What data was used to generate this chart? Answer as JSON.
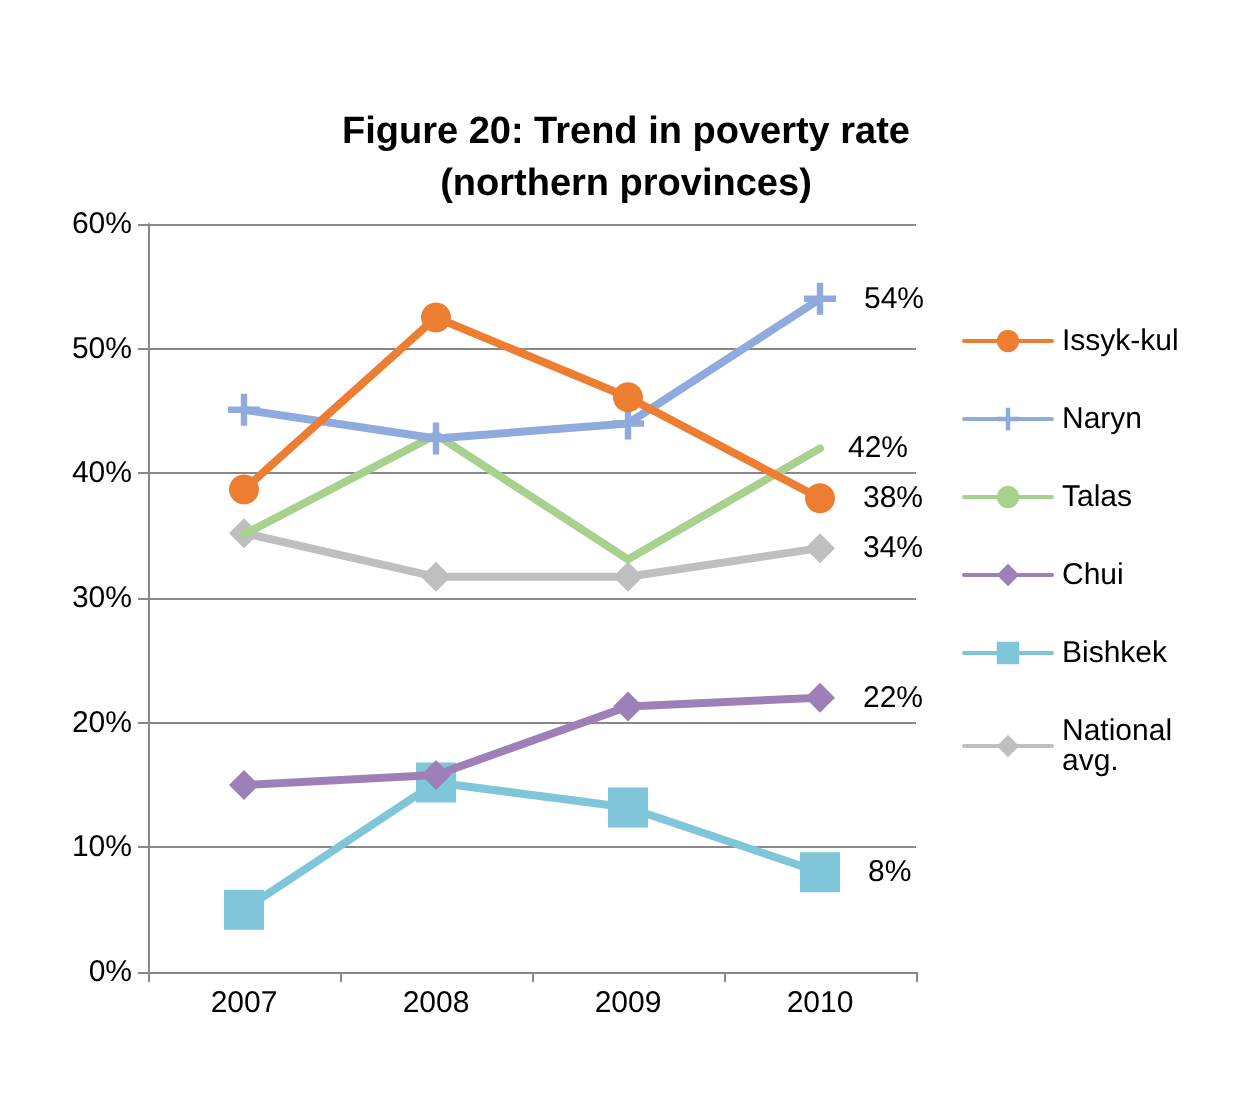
{
  "chart_data": {
    "type": "line",
    "title": "Figure 20: Trend in poverty rate\n(northern provinces)",
    "categories": [
      "2007",
      "2008",
      "2009",
      "2010"
    ],
    "series": [
      {
        "name": "Issyk-kul",
        "color": "#ed7d31",
        "marker": "circle",
        "values": [
          38.7,
          52.5,
          46.1,
          38
        ],
        "value_labels": [
          null,
          null,
          null,
          "38%"
        ]
      },
      {
        "name": "Naryn",
        "color": "#8faadc",
        "marker": "cross",
        "values": [
          45.1,
          42.8,
          44.0,
          54
        ],
        "value_labels": [
          null,
          null,
          null,
          "54%"
        ]
      },
      {
        "name": "Talas",
        "color": "#a9d18e",
        "marker": "none",
        "values": [
          35.1,
          43.1,
          33.1,
          42
        ],
        "value_labels": [
          null,
          null,
          null,
          "42%"
        ]
      },
      {
        "name": "Chui",
        "color": "#9e80b8",
        "marker": "diamond",
        "values": [
          15.0,
          15.8,
          21.3,
          22
        ],
        "value_labels": [
          null,
          null,
          null,
          "22%"
        ]
      },
      {
        "name": "Bishkek",
        "color": "#7fc6da",
        "marker": "square",
        "values": [
          5.0,
          15.2,
          13.2,
          8
        ],
        "value_labels": [
          null,
          null,
          null,
          "8%"
        ]
      },
      {
        "name": "National avg.",
        "color": "#bfbfbf",
        "marker": "diamond",
        "values": [
          35.2,
          31.7,
          31.7,
          34
        ],
        "value_labels": [
          null,
          null,
          null,
          "34%"
        ]
      }
    ],
    "ylim": [
      0,
      60
    ],
    "yticks": [
      {
        "value": 0,
        "label": "0%"
      },
      {
        "value": 10,
        "label": "10%"
      },
      {
        "value": 20,
        "label": "20%"
      },
      {
        "value": 30,
        "label": "30%"
      },
      {
        "value": 40,
        "label": "40%"
      },
      {
        "value": 50,
        "label": "50%"
      },
      {
        "value": 60,
        "label": "60%"
      }
    ],
    "grid": "y",
    "legend": "right",
    "line_style": "solid"
  }
}
